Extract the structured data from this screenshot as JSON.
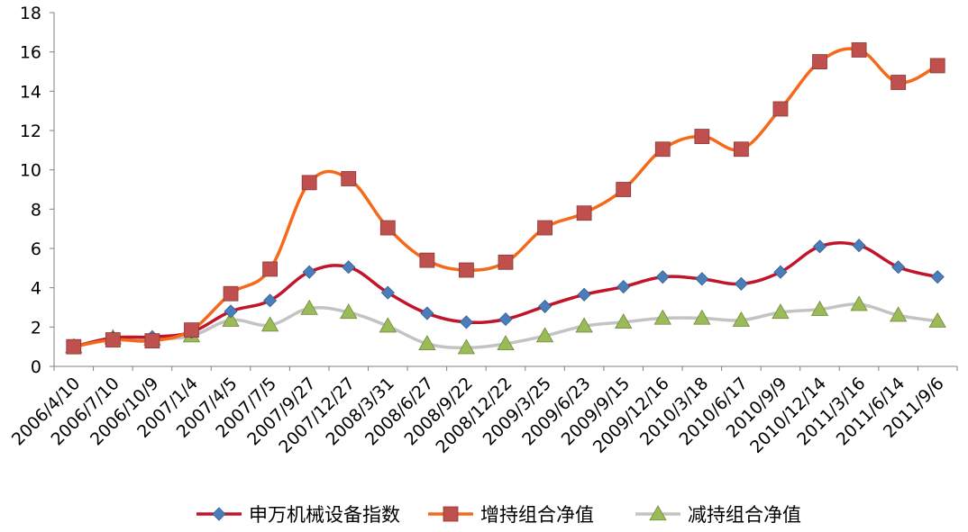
{
  "chart_data": {
    "type": "line",
    "categories": [
      "2006/4/10",
      "2006/7/10",
      "2006/10/9",
      "2007/1/4",
      "2007/4/5",
      "2007/7/5",
      "2007/9/27",
      "2007/12/27",
      "2008/3/31",
      "2008/6/27",
      "2008/9/22",
      "2008/12/22",
      "2009/3/25",
      "2009/6/23",
      "2009/9/15",
      "2009/12/16",
      "2010/3/18",
      "2010/6/17",
      "2010/9/9",
      "2010/12/14",
      "2011/3/16",
      "2011/6/14",
      "2011/9/6"
    ],
    "ylim": [
      0,
      18
    ],
    "yticks": [
      0,
      2,
      4,
      6,
      8,
      10,
      12,
      14,
      16,
      18
    ],
    "grid": false,
    "legend_position": "bottom",
    "series": [
      {
        "name": "申万机械设备指数",
        "color": "#c0152b",
        "marker": "diamond",
        "marker_color": "#4a7ebb",
        "values": [
          1.0,
          1.45,
          1.5,
          1.75,
          2.8,
          3.35,
          4.8,
          5.05,
          3.75,
          2.7,
          2.25,
          2.4,
          3.05,
          3.65,
          4.05,
          4.55,
          4.45,
          4.2,
          4.8,
          6.1,
          6.15,
          5.05,
          4.55
        ]
      },
      {
        "name": "增持组合净值",
        "color": "#f5691a",
        "marker": "square",
        "marker_color": "#c0504d",
        "values": [
          1.0,
          1.35,
          1.3,
          1.85,
          3.7,
          4.95,
          9.35,
          9.55,
          7.05,
          5.4,
          4.9,
          5.3,
          7.05,
          7.8,
          9.0,
          11.05,
          11.7,
          11.05,
          13.1,
          15.5,
          16.1,
          14.45,
          15.3
        ]
      },
      {
        "name": "减持组合净值",
        "color": "#c3c3c3",
        "marker": "triangle",
        "marker_color": "#9bbb59",
        "values": [
          1.0,
          1.45,
          1.4,
          1.55,
          2.35,
          2.1,
          2.95,
          2.75,
          2.05,
          1.15,
          0.95,
          1.15,
          1.55,
          2.05,
          2.25,
          2.45,
          2.45,
          2.35,
          2.75,
          2.9,
          3.15,
          2.6,
          2.3
        ]
      }
    ]
  }
}
